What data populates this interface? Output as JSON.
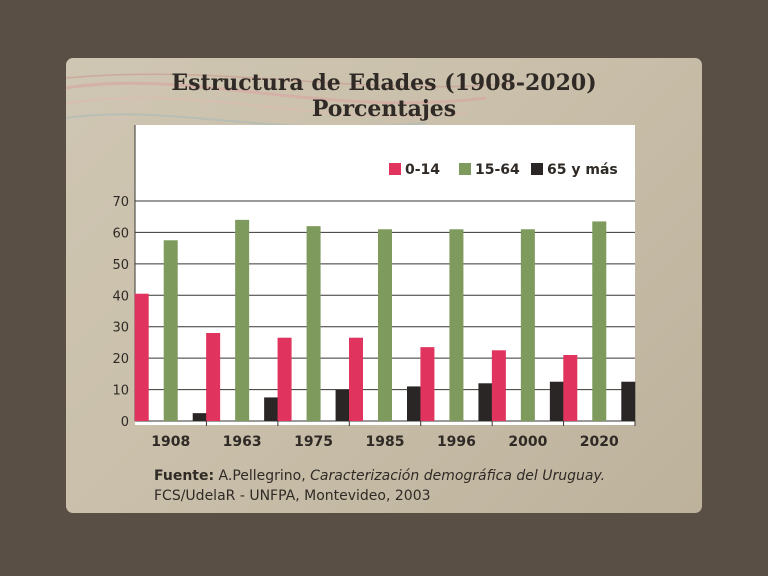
{
  "title_line1": "Estructura de Edades (1908-2020)",
  "title_line2": "Porcentajes",
  "source": {
    "label": "Fuente:",
    "author": "A.Pellegrino,",
    "work": "Caracterización demográfica del Uruguay.",
    "line2": "FCS/UdelaR - UNFPA, Montevideo, 2003"
  },
  "chart_data": {
    "type": "bar",
    "title": "Estructura de Edades (1908-2020) Porcentajes",
    "xlabel": "",
    "ylabel": "",
    "categories": [
      "1908",
      "1963",
      "1975",
      "1985",
      "1996",
      "2000",
      "2020"
    ],
    "series": [
      {
        "name": "0-14",
        "color": "#e0345e",
        "values": [
          40.5,
          28,
          26.5,
          26.5,
          23.5,
          22.5,
          21
        ]
      },
      {
        "name": "15-64",
        "color": "#7e9a5d",
        "values": [
          57.5,
          64,
          62,
          61,
          61,
          61,
          63.5
        ]
      },
      {
        "name": "65 y más",
        "color": "#2a2626",
        "values": [
          2.5,
          7.5,
          10,
          11,
          12,
          12.5,
          12.5
        ]
      }
    ],
    "ylim": [
      0,
      70
    ],
    "yticks": [
      0,
      10,
      20,
      30,
      40,
      50,
      60,
      70
    ],
    "grid": true,
    "legend_position": "top-right"
  }
}
